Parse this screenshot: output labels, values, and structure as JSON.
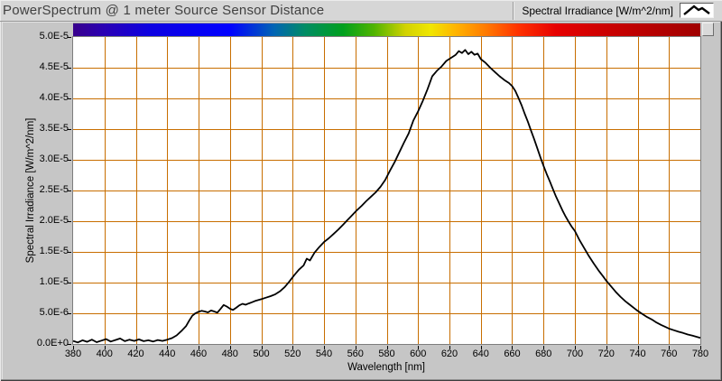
{
  "window": {
    "title": "PowerSpectrum @ 1 meter Source Sensor Distance"
  },
  "legend": {
    "label": "Spectral Irradiance [W/m^2/nm]",
    "icon": "line-plot-peak-icon"
  },
  "colors": {
    "window_bg": "#c6c6c6",
    "titlebar_bg": "#d6d6d6",
    "plot_bg": "#ffffff",
    "grid": "#c86e00",
    "curve": "#000000",
    "tick": "#000000",
    "title_text": "#414141",
    "axis_text": "#000000"
  },
  "color_scale": {
    "description": "visible-spectrum color ramp above plot, violet at 380nm to dark red at 780nm",
    "stops": [
      {
        "color": "#38008c",
        "pos": 0
      },
      {
        "color": "#2a00b4",
        "pos": 5
      },
      {
        "color": "#0d00e0",
        "pos": 12
      },
      {
        "color": "#0000ff",
        "pos": 25
      },
      {
        "color": "#0064b4",
        "pos": 32
      },
      {
        "color": "#008c64",
        "pos": 37
      },
      {
        "color": "#00a01e",
        "pos": 43
      },
      {
        "color": "#50b400",
        "pos": 48
      },
      {
        "color": "#d2d200",
        "pos": 53
      },
      {
        "color": "#f0e600",
        "pos": 57
      },
      {
        "color": "#ffb400",
        "pos": 61
      },
      {
        "color": "#ff7800",
        "pos": 66
      },
      {
        "color": "#ff3200",
        "pos": 71
      },
      {
        "color": "#e60000",
        "pos": 77
      },
      {
        "color": "#c80000",
        "pos": 86
      },
      {
        "color": "#a00000",
        "pos": 100
      }
    ]
  },
  "chart_data": {
    "type": "line",
    "title": "PowerSpectrum @ 1 meter Source Sensor Distance",
    "xlabel": "Wavelength [nm]",
    "ylabel": "Spectral Irradiance [W/m^2/nm]",
    "xlim": [
      380,
      780
    ],
    "ylim": [
      0,
      5e-05
    ],
    "grid": true,
    "legend_position": "top-right",
    "x_ticks": [
      380,
      400,
      420,
      440,
      460,
      480,
      500,
      520,
      540,
      560,
      580,
      600,
      620,
      640,
      660,
      680,
      700,
      720,
      740,
      760,
      780
    ],
    "y_ticks": [
      {
        "value": 0.0,
        "label": "0.0E+0"
      },
      {
        "value": 5e-06,
        "label": "5.0E-6"
      },
      {
        "value": 1e-05,
        "label": "1.0E-5"
      },
      {
        "value": 1.5e-05,
        "label": "1.5E-5"
      },
      {
        "value": 2e-05,
        "label": "2.0E-5"
      },
      {
        "value": 2.5e-05,
        "label": "2.5E-5"
      },
      {
        "value": 3e-05,
        "label": "3.0E-5"
      },
      {
        "value": 3.5e-05,
        "label": "3.5E-5"
      },
      {
        "value": 4e-05,
        "label": "4.0E-5"
      },
      {
        "value": 4.5e-05,
        "label": "4.5E-5"
      },
      {
        "value": 5e-05,
        "label": "5.0E-5"
      }
    ],
    "peak": {
      "wavelength_nm": 630,
      "value": 4.79e-05
    },
    "series": [
      {
        "name": "Spectral Irradiance [W/m^2/nm]",
        "color": "#000000",
        "x": [
          380,
          383,
          386,
          389,
          392,
          395,
          398,
          401,
          404,
          407,
          410,
          413,
          416,
          419,
          422,
          425,
          428,
          431,
          434,
          437,
          440,
          443,
          446,
          449,
          452,
          454,
          456,
          458,
          460,
          462,
          464,
          466,
          468,
          470,
          472,
          474,
          476,
          478,
          480,
          482,
          484,
          486,
          488,
          490,
          492,
          494,
          496,
          498,
          500,
          503,
          506,
          509,
          512,
          515,
          518,
          521,
          524,
          527,
          529,
          531,
          534,
          537,
          540,
          543,
          546,
          549,
          552,
          555,
          558,
          561,
          564,
          567,
          570,
          573,
          576,
          579,
          582,
          585,
          588,
          591,
          594,
          597,
          600,
          603,
          606,
          609,
          612,
          615,
          618,
          621,
          624,
          626,
          628,
          630,
          632,
          634,
          636,
          638,
          640,
          643,
          646,
          649,
          652,
          655,
          658,
          660,
          662,
          664,
          666,
          668,
          670,
          672,
          674,
          676,
          678,
          680,
          682,
          684,
          686,
          688,
          690,
          692,
          694,
          696,
          698,
          700,
          703,
          706,
          709,
          712,
          715,
          718,
          720,
          723,
          726,
          729,
          732,
          735,
          738,
          740,
          743,
          746,
          749,
          752,
          755,
          758,
          760,
          763,
          766,
          769,
          772,
          775,
          778,
          780
        ],
        "y": [
          5e-07,
          2.5e-07,
          6e-07,
          3.5e-07,
          7e-07,
          3e-07,
          5.5e-07,
          8e-07,
          4e-07,
          6.5e-07,
          9e-07,
          4.5e-07,
          7e-07,
          5e-07,
          7.5e-07,
          4.5e-07,
          6e-07,
          4e-07,
          6.5e-07,
          5e-07,
          7e-07,
          9.5e-07,
          1.4e-06,
          2.1e-06,
          2.9e-06,
          3.8e-06,
          4.6e-06,
          5e-06,
          5.25e-06,
          5.4e-06,
          5.3e-06,
          5.15e-06,
          5.45e-06,
          5.3e-06,
          5.1e-06,
          5.7e-06,
          6.35e-06,
          6.1e-06,
          5.75e-06,
          5.55e-06,
          5.9e-06,
          6.3e-06,
          6.55e-06,
          6.4e-06,
          6.6e-06,
          6.8e-06,
          7e-06,
          7.15e-06,
          7.3e-06,
          7.55e-06,
          7.8e-06,
          8.1e-06,
          8.6e-06,
          9.3e-06,
          1.02e-05,
          1.12e-05,
          1.21e-05,
          1.28e-05,
          1.39e-05,
          1.36e-05,
          1.49e-05,
          1.58e-05,
          1.66e-05,
          1.72e-05,
          1.79e-05,
          1.86e-05,
          1.94e-05,
          2.02e-05,
          2.1e-05,
          2.18e-05,
          2.25e-05,
          2.33e-05,
          2.4e-05,
          2.47e-05,
          2.56e-05,
          2.67e-05,
          2.82e-05,
          2.96e-05,
          3.12e-05,
          3.28e-05,
          3.43e-05,
          3.64e-05,
          3.79e-05,
          3.96e-05,
          4.15e-05,
          4.36e-05,
          4.45e-05,
          4.52e-05,
          4.61e-05,
          4.66e-05,
          4.71e-05,
          4.77e-05,
          4.74e-05,
          4.79e-05,
          4.72e-05,
          4.76e-05,
          4.71e-05,
          4.73e-05,
          4.64e-05,
          4.58e-05,
          4.5e-05,
          4.43e-05,
          4.36e-05,
          4.3e-05,
          4.25e-05,
          4.2e-05,
          4.12e-05,
          4.01e-05,
          3.89e-05,
          3.75e-05,
          3.62e-05,
          3.48e-05,
          3.34e-05,
          3.19e-05,
          3.04e-05,
          2.9e-05,
          2.77e-05,
          2.65e-05,
          2.52e-05,
          2.4e-05,
          2.29e-05,
          2.18e-05,
          2.08e-05,
          1.99e-05,
          1.91e-05,
          1.84e-05,
          1.69e-05,
          1.56e-05,
          1.43e-05,
          1.31e-05,
          1.2e-05,
          1.1e-05,
          1.03e-05,
          9.4e-06,
          8.5e-06,
          7.7e-06,
          7e-06,
          6.4e-06,
          5.8e-06,
          5.4e-06,
          4.9e-06,
          4.4e-06,
          4e-06,
          3.5e-06,
          3.1e-06,
          2.75e-06,
          2.5e-06,
          2.25e-06,
          2e-06,
          1.8e-06,
          1.55e-06,
          1.35e-06,
          1.15e-06,
          1e-06
        ]
      }
    ]
  }
}
